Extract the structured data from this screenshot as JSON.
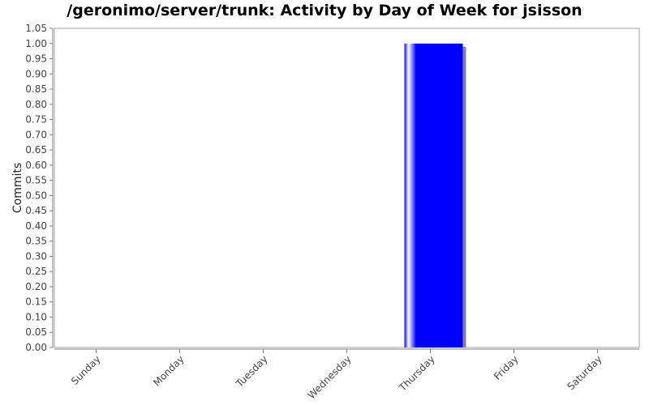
{
  "chart_data": {
    "type": "bar",
    "title": "/geronimo/server/trunk: Activity by Day of Week for jsisson",
    "xlabel": "",
    "ylabel": "Commits",
    "categories": [
      "Sunday",
      "Monday",
      "Tuesday",
      "Wednesday",
      "Thursday",
      "Friday",
      "Saturday"
    ],
    "values": [
      0,
      0,
      0,
      0,
      1,
      0,
      0
    ],
    "ylim": [
      0,
      1.05
    ],
    "yticks": [
      "0.00",
      "0.05",
      "0.10",
      "0.15",
      "0.20",
      "0.25",
      "0.30",
      "0.35",
      "0.40",
      "0.45",
      "0.50",
      "0.55",
      "0.60",
      "0.65",
      "0.70",
      "0.75",
      "0.80",
      "0.85",
      "0.90",
      "0.95",
      "1.00",
      "1.05"
    ],
    "grid": false,
    "bar_color": "#0000ff",
    "shadow_color": "#8080a8"
  }
}
